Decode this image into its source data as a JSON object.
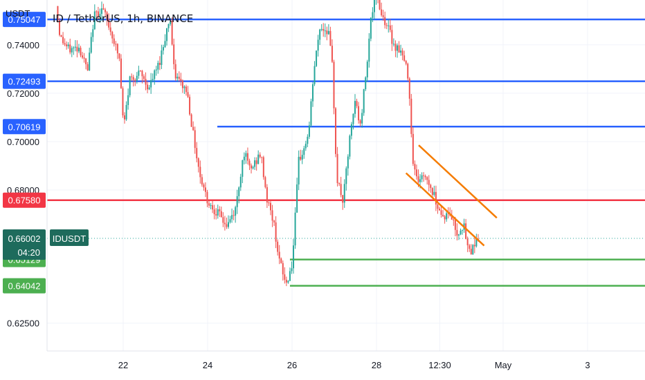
{
  "chart_data": {
    "type": "candlestick",
    "title": "ID / TetherUS, 1h, BINANCE",
    "unit": "USDT",
    "symbol_label": "IDUSDT",
    "countdown": "04:20",
    "y_range": [
      0.6135,
      0.7585
    ],
    "y_ticks": [
      "0.74000",
      "0.72000",
      "0.70000",
      "0.68000",
      "0.62500"
    ],
    "x_ticks": [
      "22",
      "24",
      "26",
      "28",
      "12:30",
      "May",
      "3"
    ],
    "x_tick_positions": [
      2.0,
      4.0,
      6.0,
      8.0,
      9.5,
      11.0,
      13.0
    ],
    "current_price": 0.66002,
    "horizontal_levels": [
      {
        "price": 0.75047,
        "label": "0.75047",
        "color": "#2962ff",
        "from_x": 0.0
      },
      {
        "price": 0.72493,
        "label": "0.72493",
        "color": "#2962ff",
        "from_x": 0.0
      },
      {
        "price": 0.70619,
        "label": "0.70619",
        "color": "#2962ff",
        "from_x": 4.23
      },
      {
        "price": 0.6758,
        "label": "0.67580",
        "color": "#f23645",
        "from_x": 0.0
      },
      {
        "price": 0.65129,
        "label": "0.65129",
        "color": "#4caf50",
        "from_x": 5.95
      },
      {
        "price": 0.64042,
        "label": "0.64042",
        "color": "#4caf50",
        "from_x": 5.95
      }
    ],
    "channel_lines": [
      {
        "x1": 8.7,
        "y1": 0.687,
        "x2": 10.55,
        "y2": 0.657,
        "color": "#f57c00"
      },
      {
        "x1": 9.0,
        "y1": 0.6985,
        "x2": 10.85,
        "y2": 0.6685,
        "color": "#f57c00"
      }
    ],
    "price_path": [
      [
        0.45,
        0.756
      ],
      [
        0.55,
        0.743
      ],
      [
        0.75,
        0.738
      ],
      [
        1.0,
        0.739
      ],
      [
        1.2,
        0.729
      ],
      [
        1.35,
        0.752
      ],
      [
        1.55,
        0.755
      ],
      [
        1.8,
        0.743
      ],
      [
        1.95,
        0.734
      ],
      [
        2.05,
        0.705
      ],
      [
        2.2,
        0.726
      ],
      [
        2.45,
        0.728
      ],
      [
        2.65,
        0.722
      ],
      [
        2.9,
        0.733
      ],
      [
        3.15,
        0.752
      ],
      [
        3.25,
        0.728
      ],
      [
        3.45,
        0.723
      ],
      [
        3.55,
        0.721
      ],
      [
        3.7,
        0.703
      ],
      [
        3.85,
        0.687
      ],
      [
        4.05,
        0.675
      ],
      [
        4.3,
        0.67
      ],
      [
        4.5,
        0.665
      ],
      [
        4.7,
        0.672
      ],
      [
        4.9,
        0.696
      ],
      [
        5.05,
        0.688
      ],
      [
        5.3,
        0.695
      ],
      [
        5.45,
        0.676
      ],
      [
        5.6,
        0.667
      ],
      [
        5.75,
        0.65
      ],
      [
        5.9,
        0.641
      ],
      [
        6.05,
        0.65
      ],
      [
        6.2,
        0.692
      ],
      [
        6.35,
        0.698
      ],
      [
        6.45,
        0.706
      ],
      [
        6.55,
        0.728
      ],
      [
        6.7,
        0.747
      ],
      [
        6.9,
        0.746
      ],
      [
        7.0,
        0.73
      ],
      [
        7.1,
        0.685
      ],
      [
        7.25,
        0.675
      ],
      [
        7.4,
        0.7
      ],
      [
        7.55,
        0.718
      ],
      [
        7.65,
        0.705
      ],
      [
        7.8,
        0.73
      ],
      [
        7.9,
        0.75
      ],
      [
        8.05,
        0.762
      ],
      [
        8.15,
        0.753
      ],
      [
        8.3,
        0.748
      ],
      [
        8.45,
        0.74
      ],
      [
        8.6,
        0.738
      ],
      [
        8.7,
        0.733
      ],
      [
        8.8,
        0.727
      ],
      [
        8.9,
        0.693
      ],
      [
        9.0,
        0.684
      ],
      [
        9.2,
        0.686
      ],
      [
        9.4,
        0.678
      ],
      [
        9.6,
        0.669
      ],
      [
        9.8,
        0.67
      ],
      [
        9.95,
        0.662
      ],
      [
        10.1,
        0.666
      ],
      [
        10.2,
        0.656
      ],
      [
        10.3,
        0.655
      ],
      [
        10.4,
        0.6602
      ]
    ]
  }
}
